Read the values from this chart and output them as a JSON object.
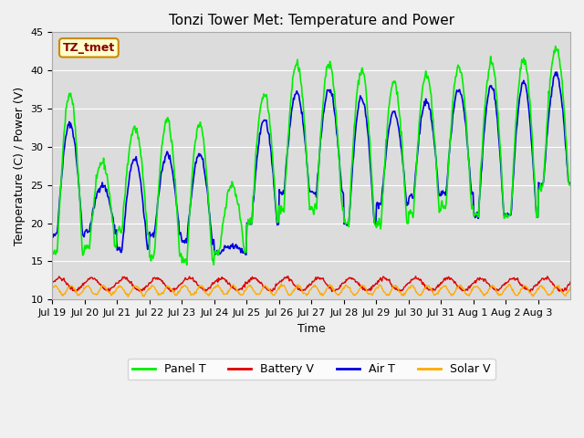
{
  "title": "Tonzi Tower Met: Temperature and Power",
  "xlabel": "Time",
  "ylabel": "Temperature (C) / Power (V)",
  "ylim": [
    10,
    45
  ],
  "yticks": [
    10,
    15,
    20,
    25,
    30,
    35,
    40,
    45
  ],
  "bg_color": "#dcdcdc",
  "fig_color": "#f0f0f0",
  "annotation_text": "TZ_tmet",
  "annotation_color": "#8b0000",
  "annotation_bg": "#ffffcc",
  "annotation_edge": "#cc8800",
  "colors": {
    "panel_t": "#00ee00",
    "battery_v": "#dd0000",
    "air_t": "#0000dd",
    "solar_v": "#ffaa00"
  },
  "legend_labels": [
    "Panel T",
    "Battery V",
    "Air T",
    "Solar V"
  ],
  "x_tick_labels": [
    "Jul 19",
    "Jul 20",
    "Jul 21",
    "Jul 22",
    "Jul 23",
    "Jul 24",
    "Jul 25",
    "Jul 26",
    "Jul 27",
    "Jul 28",
    "Jul 29",
    "Jul 30",
    "Jul 31",
    "Aug 1",
    "Aug 2",
    "Aug 3"
  ],
  "n_days": 16,
  "pts_per_day": 48,
  "panel_peaks": [
    37,
    28,
    32.5,
    33.5,
    33,
    25,
    37,
    41,
    41,
    40,
    38.5,
    39.5,
    40.5,
    41,
    41.5,
    43
  ],
  "panel_troughs": [
    16,
    17,
    19,
    15.5,
    15,
    16,
    20,
    22,
    22,
    20,
    20,
    21.5,
    22,
    21,
    21,
    25
  ],
  "air_peaks": [
    33,
    25,
    28.5,
    29,
    29,
    17,
    33.5,
    37,
    37.5,
    36.5,
    34.5,
    36,
    37.5,
    38,
    38.5,
    39.5
  ],
  "air_troughs": [
    18.5,
    19,
    16.5,
    18.5,
    17.5,
    16,
    20,
    24,
    24,
    20,
    22.5,
    23.5,
    24,
    21,
    21,
    25
  ]
}
